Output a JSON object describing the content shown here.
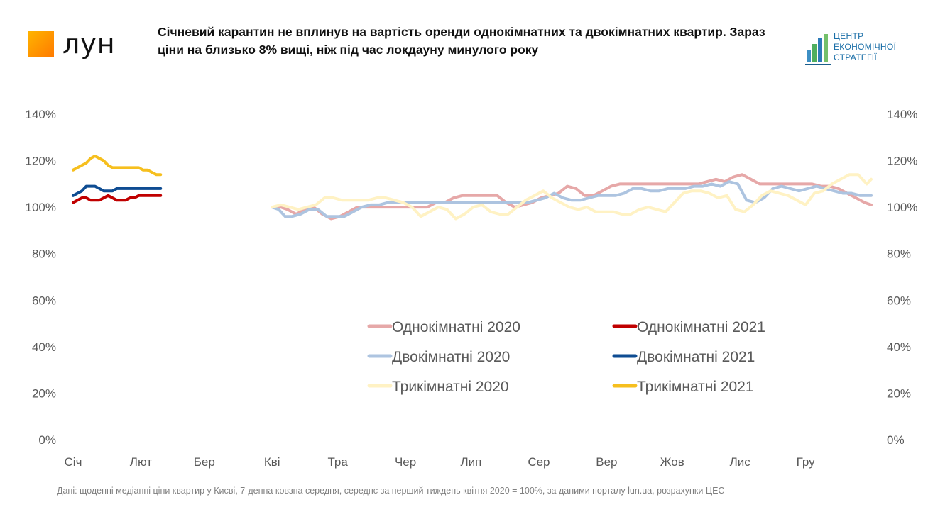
{
  "header": {
    "logo_text": "лун",
    "title": "Січневий карантин не вплинув на вартість оренди однокімнатних та двокімнатних квартир. Зараз ціни на близько 8% вищі, ніж під час локдауну минулого року",
    "ces_logo_lines": [
      "ЦЕНТР",
      "ЕКОНОМІЧНОЇ",
      "СТРАТЕГІЇ"
    ]
  },
  "footnote": "Дані: щоденні медіанні ціни квартир у Києві, 7-денна ковзна середня, середнє за перший тиждень квітня 2020 = 100%, за даними порталу lun.ua, розрахунки ЦЕС",
  "chart_data": {
    "type": "line",
    "title": "Січневий карантин не вплинув на вартість оренди однокімнатних та двокімнатних квартир. Зараз ціни на близько 8% вищі, ніж під час локдауну минулого року",
    "xlabel": "",
    "ylabel": "",
    "x_unit": "day of year",
    "x_ticks": [
      "Січ",
      "Лют",
      "Бер",
      "Кві",
      "Тра",
      "Чер",
      "Лип",
      "Сер",
      "Вер",
      "Жов",
      "Лис",
      "Гру"
    ],
    "x_tick_days": [
      0,
      31,
      60,
      91,
      121,
      152,
      182,
      213,
      244,
      274,
      305,
      335
    ],
    "xlim": [
      0,
      365
    ],
    "y_ticks": [
      "0%",
      "20%",
      "40%",
      "60%",
      "80%",
      "100%",
      "120%",
      "140%"
    ],
    "ylim": [
      0,
      140
    ],
    "y_axis_both_sides": true,
    "grid": false,
    "legend_position": "center-right",
    "series": [
      {
        "name": "Однокімнатні 2020",
        "color": "#e6a8a8",
        "x": [
          91,
          95,
          98,
          102,
          106,
          110,
          114,
          118,
          122,
          126,
          130,
          134,
          138,
          142,
          146,
          150,
          154,
          158,
          162,
          166,
          170,
          174,
          178,
          182,
          186,
          190,
          194,
          198,
          202,
          206,
          210,
          214,
          218,
          222,
          226,
          230,
          234,
          238,
          242,
          246,
          250,
          254,
          258,
          262,
          266,
          270,
          274,
          278,
          282,
          286,
          290,
          294,
          298,
          302,
          306,
          310,
          314,
          318,
          322,
          326,
          330,
          334,
          338,
          342,
          346,
          350,
          354,
          358,
          362,
          365
        ],
        "values": [
          100,
          100,
          99,
          97,
          99,
          100,
          97,
          95,
          96,
          98,
          100,
          100,
          100,
          100,
          100,
          100,
          100,
          100,
          100,
          102,
          102,
          104,
          105,
          105,
          105,
          105,
          105,
          102,
          100,
          101,
          102,
          104,
          105,
          106,
          109,
          108,
          105,
          105,
          107,
          109,
          110,
          110,
          110,
          110,
          110,
          110,
          110,
          110,
          110,
          110,
          111,
          112,
          111,
          113,
          114,
          112,
          110,
          110,
          110,
          110,
          110,
          110,
          110,
          109,
          109,
          108,
          106,
          104,
          102,
          101
        ]
      },
      {
        "name": "Однокімнатні 2021",
        "color": "#c00000",
        "x": [
          0,
          2,
          4,
          6,
          8,
          10,
          12,
          14,
          16,
          18,
          20,
          22,
          24,
          26,
          28,
          30,
          32,
          34,
          36,
          38,
          40
        ],
        "values": [
          102,
          103,
          104,
          104,
          103,
          103,
          103,
          104,
          105,
          104,
          103,
          103,
          103,
          104,
          104,
          105,
          105,
          105,
          105,
          105,
          105
        ]
      },
      {
        "name": "Двокімнатні 2020",
        "color": "#adc4e0",
        "x": [
          91,
          94,
          97,
          100,
          104,
          108,
          112,
          116,
          120,
          124,
          128,
          132,
          136,
          140,
          144,
          148,
          152,
          156,
          160,
          164,
          168,
          172,
          176,
          180,
          184,
          188,
          192,
          196,
          200,
          204,
          208,
          212,
          216,
          220,
          224,
          228,
          232,
          236,
          240,
          244,
          248,
          252,
          256,
          260,
          264,
          268,
          272,
          276,
          280,
          284,
          288,
          292,
          296,
          300,
          304,
          308,
          312,
          316,
          320,
          324,
          328,
          332,
          336,
          340,
          344,
          348,
          352,
          356,
          360,
          365
        ],
        "values": [
          100,
          99,
          96,
          96,
          97,
          99,
          99,
          96,
          96,
          96,
          98,
          100,
          101,
          101,
          102,
          102,
          102,
          102,
          102,
          102,
          102,
          102,
          102,
          102,
          102,
          102,
          102,
          102,
          102,
          102,
          102,
          103,
          104,
          106,
          104,
          103,
          103,
          104,
          105,
          105,
          105,
          106,
          108,
          108,
          107,
          107,
          108,
          108,
          108,
          109,
          109,
          110,
          109,
          111,
          110,
          103,
          102,
          104,
          108,
          109,
          108,
          107,
          108,
          109,
          108,
          107,
          106,
          106,
          105,
          105
        ]
      },
      {
        "name": "Двокімнатні 2021",
        "color": "#0e4c92",
        "x": [
          0,
          2,
          4,
          6,
          8,
          10,
          12,
          14,
          16,
          18,
          20,
          22,
          24,
          26,
          28,
          30,
          32,
          34,
          36,
          38,
          40
        ],
        "values": [
          105,
          106,
          107,
          109,
          109,
          109,
          108,
          107,
          107,
          107,
          108,
          108,
          108,
          108,
          108,
          108,
          108,
          108,
          108,
          108,
          108
        ]
      },
      {
        "name": "Трикімнатні 2020",
        "color": "#fff2c4",
        "x": [
          91,
          95,
          99,
          103,
          107,
          111,
          115,
          119,
          123,
          127,
          131,
          135,
          139,
          143,
          147,
          151,
          155,
          159,
          163,
          167,
          171,
          175,
          179,
          183,
          187,
          191,
          195,
          199,
          203,
          207,
          211,
          215,
          219,
          223,
          227,
          231,
          235,
          239,
          243,
          247,
          251,
          255,
          259,
          263,
          267,
          271,
          275,
          279,
          283,
          287,
          291,
          295,
          299,
          303,
          307,
          311,
          315,
          319,
          323,
          327,
          331,
          335,
          339,
          343,
          347,
          351,
          355,
          359,
          363,
          365
        ],
        "values": [
          100,
          101,
          100,
          99,
          100,
          101,
          104,
          104,
          103,
          103,
          103,
          103,
          104,
          104,
          103,
          102,
          100,
          96,
          98,
          100,
          99,
          95,
          97,
          100,
          101,
          98,
          97,
          97,
          100,
          103,
          105,
          107,
          104,
          102,
          100,
          99,
          100,
          98,
          98,
          98,
          97,
          97,
          99,
          100,
          99,
          98,
          102,
          106,
          107,
          107,
          106,
          104,
          105,
          99,
          98,
          101,
          105,
          107,
          106,
          105,
          103,
          101,
          106,
          107,
          110,
          112,
          114,
          114,
          110,
          112
        ]
      },
      {
        "name": "Трикімнатні 2021",
        "color": "#f6bf1e",
        "x": [
          0,
          2,
          4,
          6,
          8,
          10,
          12,
          14,
          16,
          18,
          20,
          22,
          24,
          26,
          28,
          30,
          32,
          34,
          36,
          38,
          40
        ],
        "values": [
          116,
          117,
          118,
          119,
          121,
          122,
          121,
          120,
          118,
          117,
          117,
          117,
          117,
          117,
          117,
          117,
          116,
          116,
          115,
          114,
          114
        ]
      }
    ]
  }
}
